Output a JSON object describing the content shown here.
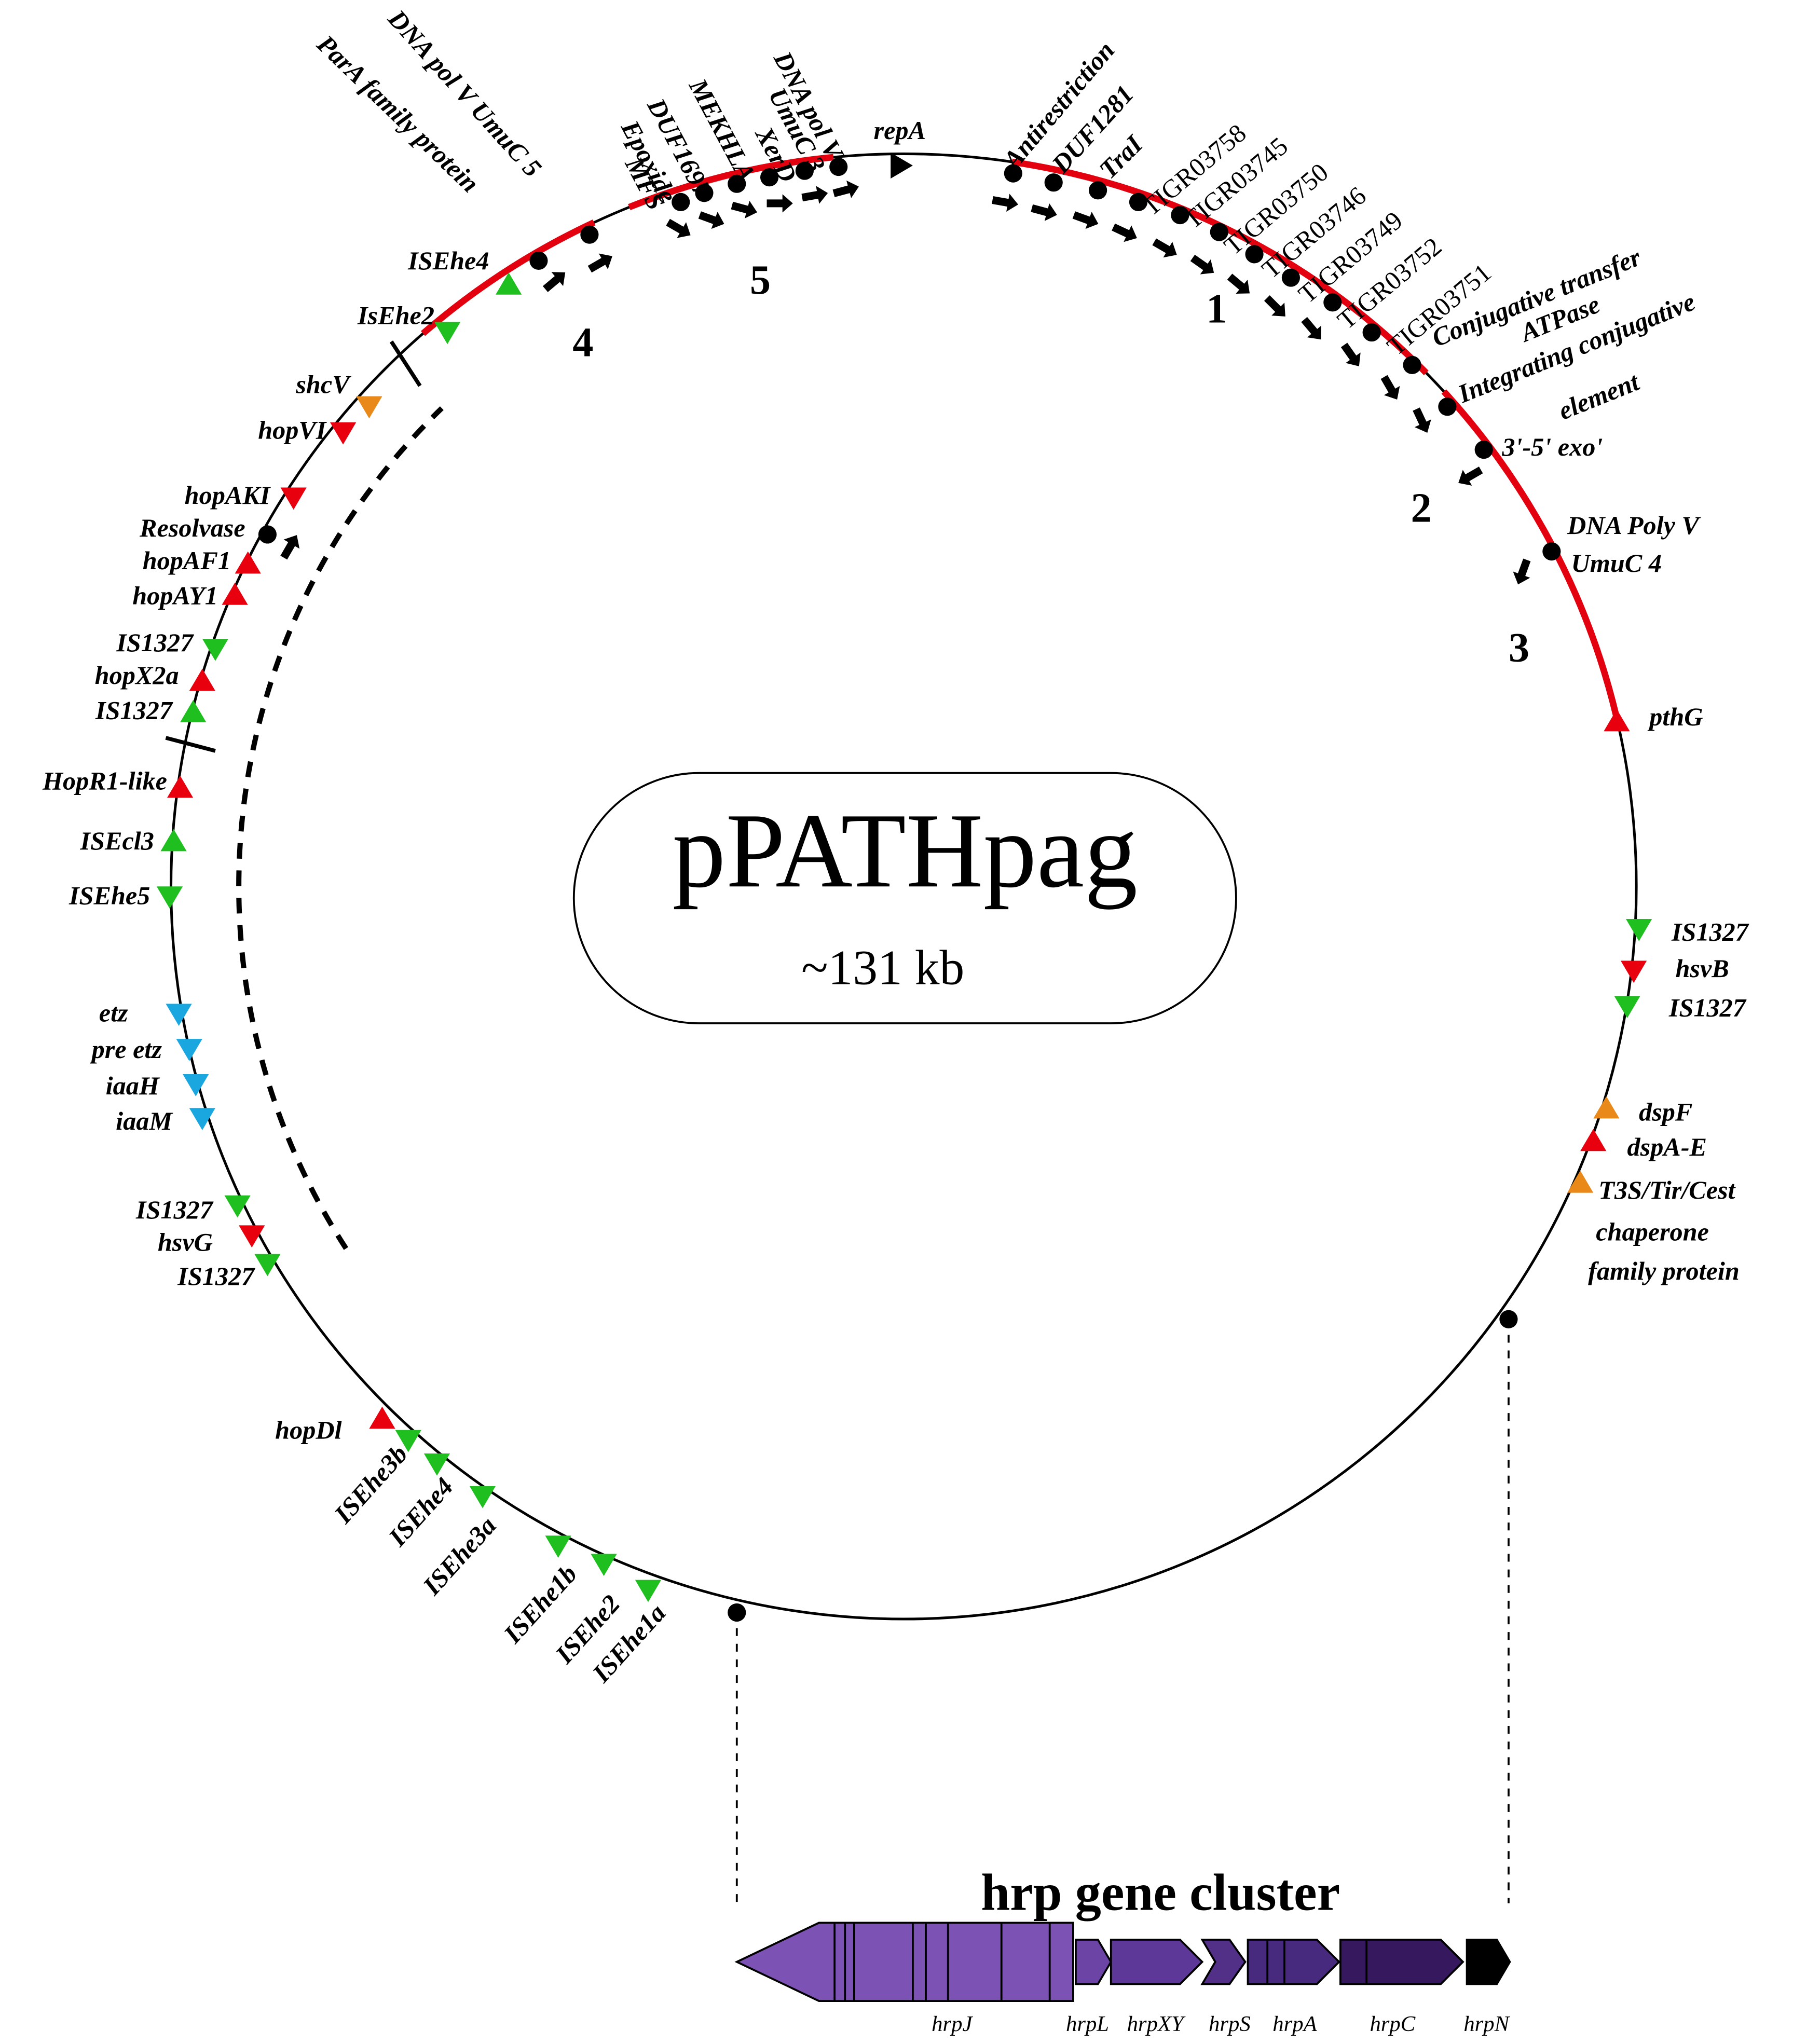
{
  "title": "pPATHpag",
  "size": "~131 kb",
  "labels": [
    "DNA pol V UmuC 5",
    "ParA family protein",
    "MFS",
    "Epoxide",
    "DUF1697",
    "MEKHLA",
    "XerD",
    "UmuC 3",
    "DNA pol V",
    "repA",
    "Antirestriction",
    "DUF1281",
    "TraI",
    "TIGR03758",
    "TIGR03745",
    "TIGR03750",
    "TIGR03746",
    "TIGR03749",
    "TIGR03752",
    "TIGR03751",
    "Conjugative transfer",
    "ATPase",
    "Integrating conjugative",
    "element",
    "3'-5' exo'",
    "DNA Poly V",
    "UmuC 4",
    "pthG",
    "IS1327",
    "hsvB",
    "IS1327",
    "dspF",
    "dspA-E",
    "T3S/Tir/Cest",
    "chaperone",
    "family protein",
    "ISEhe4",
    "IsEhe2",
    "shcV",
    "hopVI",
    "hopAKI",
    "Resolvase",
    "hopAF1",
    "hopAY1",
    "IS1327",
    "hopX2a",
    "IS1327",
    "HopR1-like",
    "ISEcl3",
    "ISEhe5",
    "etz",
    "pre etz",
    "iaaH",
    "iaaM",
    "IS1327",
    "hsvG",
    "IS1327",
    "hopDl",
    "ISEhe3b",
    "ISEhe4",
    "ISEhe3a",
    "ISEhe1b",
    "ISEhe2",
    "ISEhe1a"
  ],
  "regions": [
    "1",
    "2",
    "3",
    "4",
    "5"
  ],
  "cluster": {
    "title": "hrp gene cluster",
    "genes": [
      "hrpJ",
      "hrpL",
      "hrpXY",
      "hrpS",
      "hrpA",
      "hrpC",
      "hrpN"
    ]
  }
}
